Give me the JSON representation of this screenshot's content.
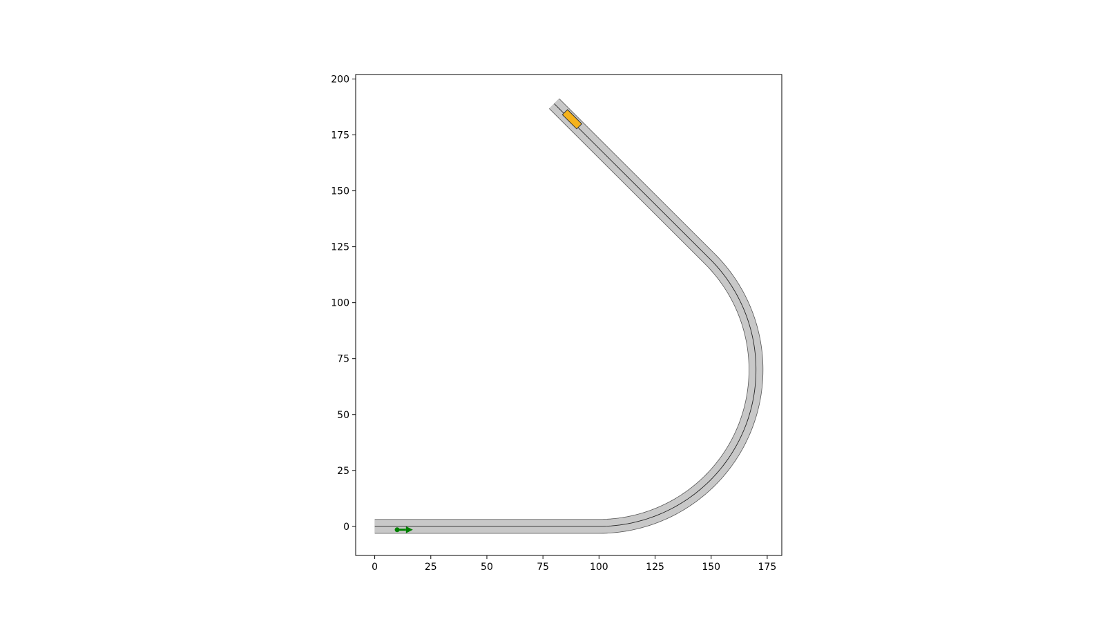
{
  "chart_data": {
    "type": "line",
    "title": "",
    "xlabel": "",
    "ylabel": "",
    "xlim": [
      -8.5,
      181.5
    ],
    "ylim": [
      -13,
      202
    ],
    "xticks": [
      0,
      25,
      50,
      75,
      100,
      125,
      150,
      175
    ],
    "yticks": [
      0,
      25,
      50,
      75,
      100,
      125,
      150,
      175,
      200
    ],
    "grid": false,
    "aspect": "equal",
    "road": {
      "lane_width": 6,
      "segments": [
        {
          "kind": "straight",
          "from": [
            0,
            0
          ],
          "to": [
            100,
            0
          ]
        },
        {
          "kind": "arc",
          "center": [
            100,
            70
          ],
          "radius": 70,
          "start_deg": -90,
          "end_deg": 0
        },
        {
          "kind": "arc",
          "center": [
            100,
            70
          ],
          "radius": 70,
          "start_deg": 0,
          "end_deg": 45
        },
        {
          "kind": "straight",
          "from": [
            149.5,
            119.5
          ],
          "to": [
            80,
            189
          ]
        }
      ],
      "colors": {
        "surface": "#c8c8c8",
        "edge": "#555555",
        "centerline": "#222222"
      }
    },
    "ego": {
      "x": 10,
      "y": -1.5,
      "heading_deg": 0,
      "arrow_length": 7,
      "color": "#008000"
    },
    "obstacle": {
      "x": 88,
      "y": 182,
      "length": 9,
      "width": 3.2,
      "heading_deg": 135,
      "color": "#f5b21a",
      "edge": "#333333"
    }
  }
}
